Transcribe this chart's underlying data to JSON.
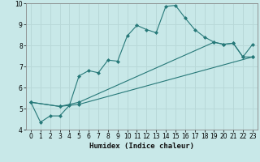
{
  "title": "",
  "xlabel": "Humidex (Indice chaleur)",
  "bg_color": "#c8e8e8",
  "grid_color": "#b8d8d8",
  "line_color": "#267878",
  "xlim": [
    -0.5,
    23.5
  ],
  "ylim": [
    4,
    10
  ],
  "xticks": [
    0,
    1,
    2,
    3,
    4,
    5,
    6,
    7,
    8,
    9,
    10,
    11,
    12,
    13,
    14,
    15,
    16,
    17,
    18,
    19,
    20,
    21,
    22,
    23
  ],
  "yticks": [
    4,
    5,
    6,
    7,
    8,
    9,
    10
  ],
  "curve1_x": [
    0,
    1,
    2,
    3,
    4,
    5,
    6,
    7,
    8,
    9,
    10,
    11,
    12,
    13,
    14,
    15,
    16,
    17,
    18,
    19,
    20,
    21,
    22,
    23
  ],
  "curve1_y": [
    5.3,
    4.35,
    4.65,
    4.65,
    5.15,
    6.55,
    6.8,
    6.7,
    7.3,
    7.25,
    8.45,
    8.95,
    8.75,
    8.6,
    9.85,
    9.9,
    9.3,
    8.75,
    8.4,
    8.15,
    8.05,
    8.1,
    7.45,
    7.45
  ],
  "curve2_x": [
    0,
    3,
    5,
    19,
    20,
    21,
    22,
    23
  ],
  "curve2_y": [
    5.3,
    5.1,
    5.3,
    8.15,
    8.05,
    8.1,
    7.45,
    8.05
  ],
  "curve3_x": [
    0,
    3,
    5,
    23
  ],
  "curve3_y": [
    5.3,
    5.1,
    5.2,
    7.45
  ],
  "xlabel_fontsize": 6.5,
  "tick_fontsize": 5.5
}
